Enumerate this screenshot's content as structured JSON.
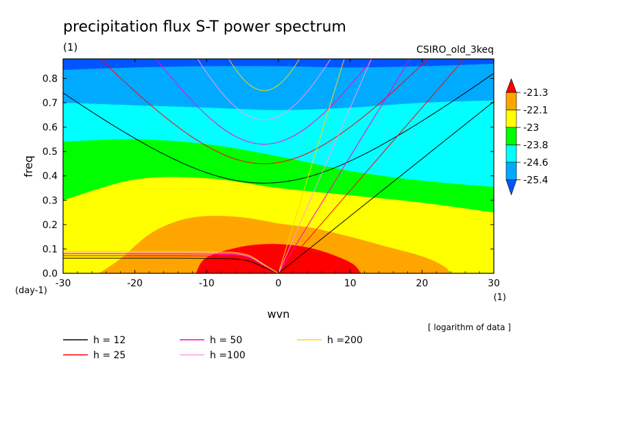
{
  "header": {
    "title": "precipitation flux S-T power spectrum",
    "units_label": "(1)",
    "model_label": "CSIRO_old_3keq",
    "note": "[ logarithm of data ]"
  },
  "axes": {
    "xlabel": "wvn",
    "ylabel": "freq",
    "x_unit": "(1)",
    "y_unit": "(day-1)",
    "x_ticks": [
      -30,
      -20,
      -10,
      0,
      10,
      20,
      30
    ],
    "x_tick_labels": [
      "-30",
      "-20",
      "-10",
      "0",
      "10",
      "20",
      "30"
    ],
    "y_ticks": [
      0,
      0.1,
      0.2,
      0.3,
      0.4,
      0.5,
      0.6,
      0.7,
      0.8
    ],
    "y_tick_labels": [
      "0.0",
      "0.1",
      "0.2",
      "0.3",
      "0.4",
      "0.5",
      "0.6",
      "0.7",
      "0.8"
    ]
  },
  "colorbar": {
    "labels": [
      "-21.3",
      "-22.1",
      "-23",
      "-23.8",
      "-24.6",
      "-25.4"
    ],
    "colors": [
      "#ff0000",
      "#ffa500",
      "#ffff00",
      "#00ff00",
      "#00ffff",
      "#00aaff",
      "#0055ff"
    ]
  },
  "legend": [
    {
      "label": "h = 12",
      "color": "#000000"
    },
    {
      "label": "h = 25",
      "color": "#ff0000"
    },
    {
      "label": "h = 50",
      "color": "#ff00cc"
    },
    {
      "label": "h =100",
      "color": "#ff99ee"
    },
    {
      "label": "h =200",
      "color": "#ffd700"
    }
  ],
  "chart_data": {
    "type": "heatmap",
    "title": "precipitation flux S-T power spectrum",
    "xlabel": "wvn",
    "ylabel": "freq",
    "xlim": [
      -30,
      30
    ],
    "ylim": [
      0,
      0.88
    ],
    "contour_levels": [
      -25.4,
      -24.6,
      -23.8,
      -23,
      -22.1,
      -21.3
    ],
    "regions": [
      {
        "level_color": "#0055ff",
        "lower_boundary": {
          "x": [
            -30,
            -20,
            -10,
            0,
            10,
            20,
            30
          ],
          "y": [
            0.835,
            0.845,
            0.85,
            0.85,
            0.845,
            0.85,
            0.86
          ]
        }
      },
      {
        "level_color": "#00aaff",
        "lower_boundary": {
          "x": [
            -30,
            -20,
            -10,
            0,
            10,
            20,
            30
          ],
          "y": [
            0.7,
            0.69,
            0.68,
            0.67,
            0.68,
            0.7,
            0.71
          ]
        }
      },
      {
        "level_color": "#00ffff",
        "lower_boundary": {
          "x": [
            -30,
            -20,
            -10,
            0,
            10,
            20,
            30
          ],
          "y": [
            0.54,
            0.55,
            0.53,
            0.48,
            0.42,
            0.38,
            0.355
          ]
        }
      },
      {
        "level_color": "#00ff00",
        "lower_boundary": {
          "x": [
            -30,
            -20,
            -10,
            0,
            10,
            20,
            30
          ],
          "y": [
            0.3,
            0.385,
            0.39,
            0.35,
            0.32,
            0.29,
            0.25
          ]
        }
      },
      {
        "level_color": "#ffff00",
        "lower_boundary": {
          "x": [
            -30,
            -25,
            -20,
            -15,
            -10,
            -5,
            0,
            5,
            10,
            15,
            20,
            25,
            30
          ],
          "y": [
            0,
            0,
            0.04,
            0.15,
            0.235,
            0.23,
            0.2,
            0.18,
            0.145,
            0.11,
            0.08,
            0.03,
            0
          ]
        }
      },
      {
        "level_color": "#ffa500",
        "lower_boundary": {
          "x": [
            -30,
            -25,
            -20,
            -15,
            -10,
            -5,
            0,
            5,
            10,
            15,
            20,
            25,
            30
          ],
          "y": [
            0,
            0,
            0,
            0,
            0,
            0,
            0,
            0,
            0,
            0,
            0,
            0,
            0
          ]
        }
      },
      {
        "level_color": "#ff0000",
        "lower_boundary": {
          "x": [
            -11.5,
            -10,
            -5,
            0,
            5,
            10,
            11.5
          ],
          "y": [
            0,
            0.065,
            0.11,
            0.12,
            0.1,
            0.045,
            0
          ]
        }
      }
    ],
    "yellow_region_right_edge": {
      "x": [
        24,
        24.5
      ],
      "y": [
        0.03,
        0
      ]
    },
    "orange_region_extent": {
      "x": [
        -25,
        24
      ]
    },
    "dispersion_curves": [
      {
        "name": "h = 12",
        "color": "#000000",
        "kelvin_slope": 0.0235,
        "eig_n1_min_freq": 0.37,
        "rossby_freq_at_neg30": 0.062
      },
      {
        "name": "h = 25",
        "color": "#ff0000",
        "kelvin_slope": 0.034,
        "eig_n1_min_freq": 0.45,
        "rossby_freq_at_neg30": 0.072
      },
      {
        "name": "h = 50",
        "color": "#ff00cc",
        "kelvin_slope": 0.048,
        "eig_n1_min_freq": 0.53,
        "rossby_freq_at_neg30": 0.08
      },
      {
        "name": "h =100",
        "color": "#ff99ee",
        "kelvin_slope": 0.068,
        "eig_n1_min_freq": 0.63,
        "rossby_freq_at_neg30": 0.085
      },
      {
        "name": "h =200",
        "color": "#ffd700",
        "kelvin_slope": 0.096,
        "eig_n1_min_freq": 0.75,
        "rossby_freq_at_neg30": 0.09
      }
    ]
  }
}
